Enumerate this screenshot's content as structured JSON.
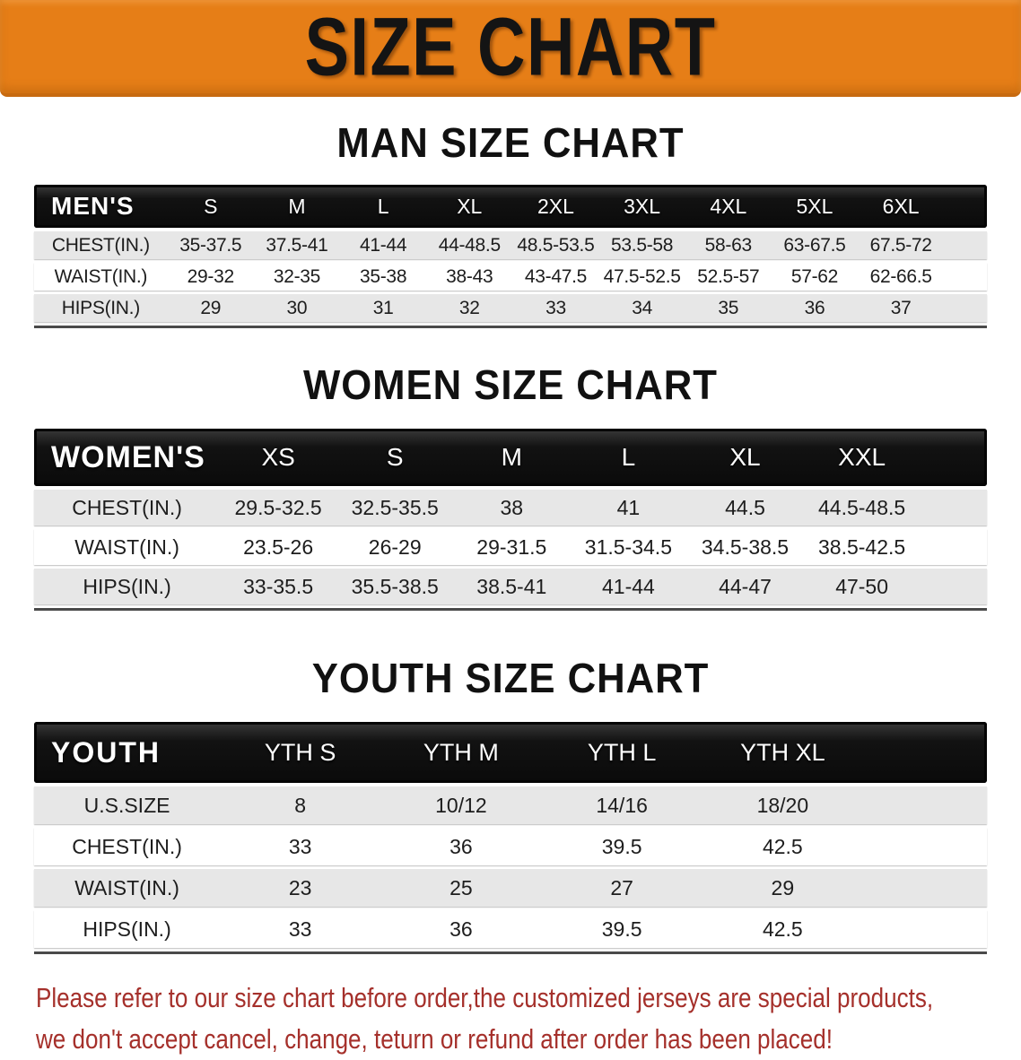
{
  "banner": {
    "title": "SIZE CHART"
  },
  "sections": [
    {
      "title": "MAN SIZE CHART",
      "table": {
        "corner_label": "MEN'S",
        "size_headers": [
          "S",
          "M",
          "L",
          "XL",
          "2XL",
          "3XL",
          "4XL",
          "5XL",
          "6XL"
        ],
        "rows": [
          {
            "label": "CHEST(IN.)",
            "values": [
              "35-37.5",
              "37.5-41",
              "41-44",
              "44-48.5",
              "48.5-53.5",
              "53.5-58",
              "58-63",
              "63-67.5",
              "67.5-72"
            ]
          },
          {
            "label": "WAIST(IN.)",
            "values": [
              "29-32",
              "32-35",
              "35-38",
              "38-43",
              "43-47.5",
              "47.5-52.5",
              "52.5-57",
              "57-62",
              "62-66.5"
            ]
          },
          {
            "label": "HIPS(IN.)",
            "values": [
              "29",
              "30",
              "31",
              "32",
              "33",
              "34",
              "35",
              "36",
              "37"
            ]
          }
        ]
      }
    },
    {
      "title": "WOMEN SIZE CHART",
      "table": {
        "corner_label": "WOMEN'S",
        "size_headers": [
          "XS",
          "S",
          "M",
          "L",
          "XL",
          "XXL"
        ],
        "rows": [
          {
            "label": "CHEST(IN.)",
            "values": [
              "29.5-32.5",
              "32.5-35.5",
              "38",
              "41",
              "44.5",
              "44.5-48.5"
            ]
          },
          {
            "label": "WAIST(IN.)",
            "values": [
              "23.5-26",
              "26-29",
              "29-31.5",
              "31.5-34.5",
              "34.5-38.5",
              "38.5-42.5"
            ]
          },
          {
            "label": "HIPS(IN.)",
            "values": [
              "33-35.5",
              "35.5-38.5",
              "38.5-41",
              "41-44",
              "44-47",
              "47-50"
            ]
          }
        ]
      }
    },
    {
      "title": "YOUTH SIZE CHART",
      "table": {
        "corner_label": "YOUTH",
        "size_headers": [
          "YTH S",
          "YTH M",
          "YTH L",
          "YTH XL"
        ],
        "rows": [
          {
            "label": "U.S.SIZE",
            "values": [
              "8",
              "10/12",
              "14/16",
              "18/20"
            ]
          },
          {
            "label": "CHEST(IN.)",
            "values": [
              "33",
              "36",
              "39.5",
              "42.5"
            ]
          },
          {
            "label": "WAIST(IN.)",
            "values": [
              "23",
              "25",
              "27",
              "29"
            ]
          },
          {
            "label": "HIPS(IN.)",
            "values": [
              "33",
              "36",
              "39.5",
              "42.5"
            ]
          }
        ]
      }
    }
  ],
  "disclaimer": {
    "lines": [
      "Please refer to our size chart before order,the customized jerseys are special products,",
      "we don't accept cancel, change, teturn or refund after order has been placed!"
    ]
  },
  "colors": {
    "banner_background": "#e67e17",
    "banner_text": "#141414",
    "table_header_background": "#121212",
    "table_header_text": "#ffffff",
    "row_stripe": "#e7e7e7",
    "disclaimer_text": "#a5302b"
  }
}
